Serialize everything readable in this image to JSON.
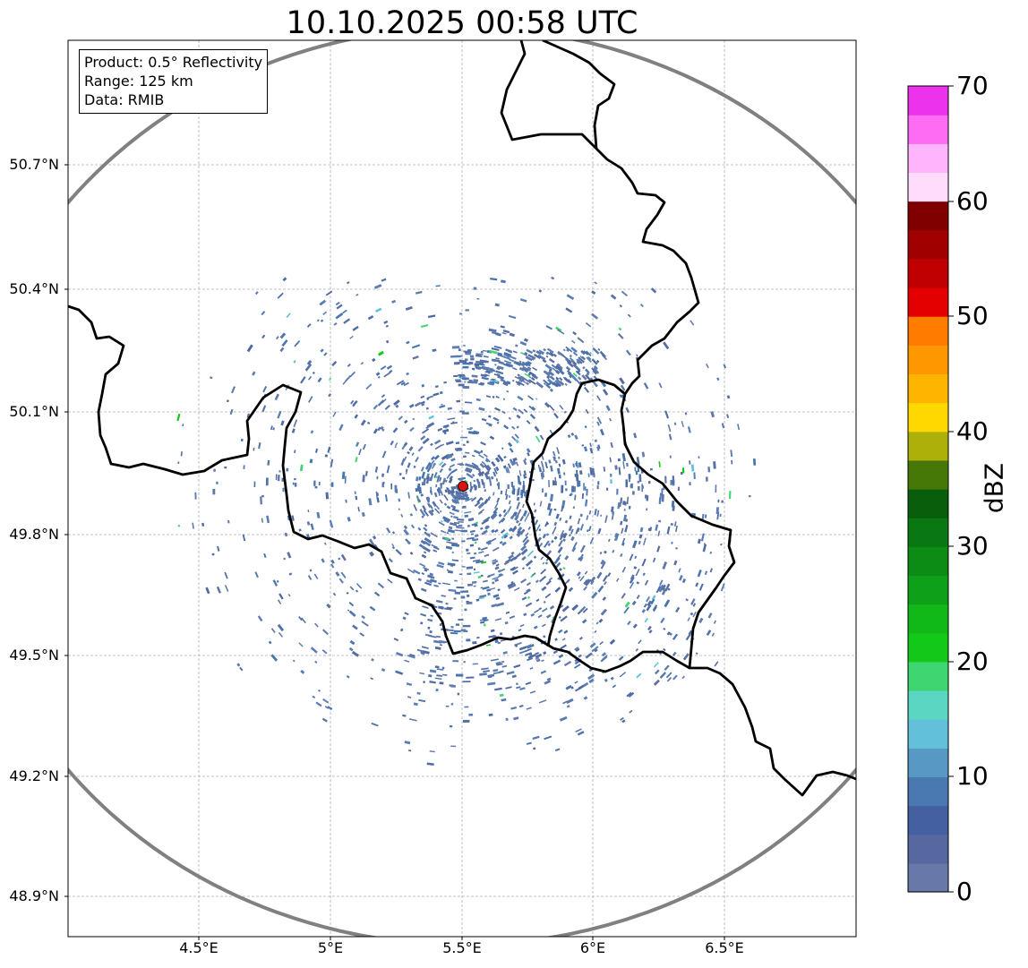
{
  "title": "10.10.2025 00:58 UTC",
  "info": {
    "product": "Product: 0.5° Reflectivity",
    "range": "Range: 125 km",
    "source": "Data: RMIB"
  },
  "lon_labels": [
    "4.5°E",
    "5°E",
    "5.5°E",
    "6°E",
    "6.5°E"
  ],
  "lat_labels": [
    "50.7°N",
    "50.4°N",
    "50.1°N",
    "49.8°N",
    "49.5°N",
    "49.2°N",
    "48.9°N"
  ],
  "radar_site": {
    "lon": 5.5,
    "lat": 49.91,
    "color": "#dd1111"
  },
  "colorbar": {
    "label": "dBZ",
    "ticks": [
      "70",
      "60",
      "50",
      "40",
      "30",
      "20",
      "10",
      "0"
    ],
    "colors_low_to_high": [
      "#6878a8",
      "#56689f",
      "#4560a0",
      "#4a78b0",
      "#5898c4",
      "#62c0da",
      "#5ad6c2",
      "#3ed670",
      "#12c818",
      "#10b818",
      "#0ea018",
      "#0c8c14",
      "#0a7812",
      "#085e0a",
      "#467808",
      "#aeb00a",
      "#ffd800",
      "#ffb400",
      "#ff9800",
      "#ff7c00",
      "#e40000",
      "#c00000",
      "#a00000",
      "#800000",
      "#ffdcfc",
      "#ffb4fc",
      "#ff6cf4",
      "#ec32ec"
    ]
  }
}
